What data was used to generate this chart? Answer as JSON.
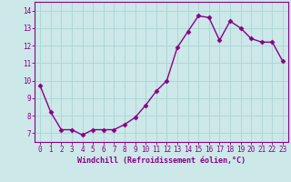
{
  "x": [
    0,
    1,
    2,
    3,
    4,
    5,
    6,
    7,
    8,
    9,
    10,
    11,
    12,
    13,
    14,
    15,
    16,
    17,
    18,
    19,
    20,
    21,
    22,
    23
  ],
  "y": [
    9.7,
    8.2,
    7.2,
    7.2,
    6.9,
    7.2,
    7.2,
    7.2,
    7.5,
    7.9,
    8.6,
    9.4,
    10.0,
    11.9,
    12.8,
    13.7,
    13.6,
    12.3,
    13.4,
    13.0,
    12.4,
    12.2,
    12.2,
    11.1
  ],
  "line_color": "#880088",
  "marker": "D",
  "marker_size": 2.5,
  "bg_color": "#cce8e8",
  "grid_color": "#aad4d4",
  "xlabel": "Windchill (Refroidissement éolien,°C)",
  "xlabel_color": "#880088",
  "tick_color": "#880088",
  "spine_color": "#880088",
  "ylim": [
    6.5,
    14.5
  ],
  "xlim": [
    -0.5,
    23.5
  ],
  "yticks": [
    7,
    8,
    9,
    10,
    11,
    12,
    13,
    14
  ],
  "xticks": [
    0,
    1,
    2,
    3,
    4,
    5,
    6,
    7,
    8,
    9,
    10,
    11,
    12,
    13,
    14,
    15,
    16,
    17,
    18,
    19,
    20,
    21,
    22,
    23
  ],
  "tick_fontsize": 5.5,
  "xlabel_fontsize": 6.0,
  "linewidth": 1.0
}
